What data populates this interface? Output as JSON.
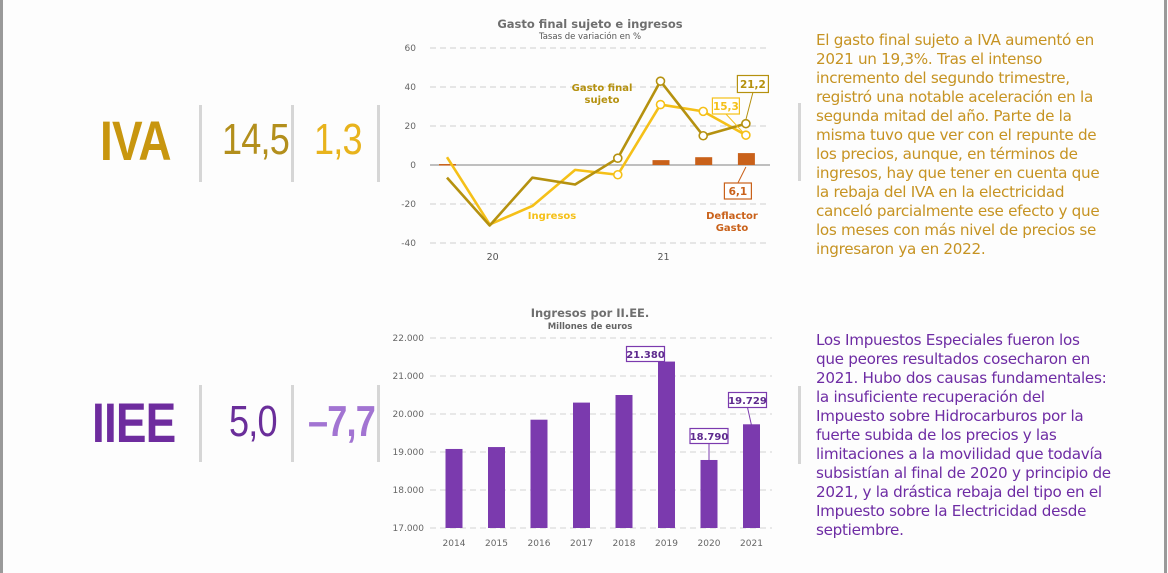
{
  "colors": {
    "iva_title": "#c8960f",
    "iva_val1": "#b38f1c",
    "iva_val2": "#e8b31c",
    "iva_text": "#c69322",
    "iiee_title": "#6e2c9e",
    "iiee_val1": "#6a2e9a",
    "iiee_val2": "#a274d2",
    "iiee_text": "#6e2ca4",
    "gasto_line": "#b5910f",
    "ingresos_line": "#f5c018",
    "deflactor_bar": "#c9611a",
    "iiee_bar": "#7b3aae"
  },
  "iva": {
    "label": "IVA",
    "value_1": "14,5",
    "value_2": "1,3",
    "description_lines": [
      "El gasto final sujeto a IVA aumentó en",
      "2021 un 19,3%. Tras el intenso",
      "incremento del segundo trimestre,",
      "registró una notable aceleración en la",
      "segunda mitad del año. Parte de la",
      "misma tuvo que ver con el repunte de",
      "los precios, aunque, en términos de",
      "ingresos, hay que tener en cuenta que",
      "la rebaja del IVA en la electricidad",
      "canceló parcialmente ese efecto y que",
      "los meses con más nivel de precios se",
      "ingresaron ya en 2022."
    ]
  },
  "iiee": {
    "label": "IIEE",
    "value_1": "5,0",
    "value_2": "–7,7",
    "description_lines": [
      "Los Impuestos Especiales fueron los",
      "que peores resultados cosecharon en",
      "2021. Hubo dos causas fundamentales:",
      "la insuficiente recuperación del",
      "Impuesto sobre Hidrocarburos por la",
      "fuerte subida de los precios y las",
      "limitaciones a la movilidad que todavía",
      "subsistían al final de 2020 y principio de",
      "2021, y la drástica rebaja del tipo en el",
      "Impuesto sobre la Electricidad desde",
      "septiembre."
    ]
  },
  "chart_data": [
    {
      "type": "line",
      "title": "Gasto final sujeto e ingresos",
      "subtitle": "Tasas de variación en %",
      "xlabel": "",
      "ylabel": "",
      "ylim": [
        -40,
        60
      ],
      "yticks": [
        "60",
        "40",
        "20",
        "0",
        "-20",
        "-40"
      ],
      "ytick_values": [
        60,
        40,
        20,
        0,
        -20,
        -40
      ],
      "grid": true,
      "x": [
        "20-Q1",
        "20-Q2",
        "20-Q3",
        "20-Q4",
        "21-Q1",
        "21-Q2",
        "21-Q3",
        "21-Q4"
      ],
      "xtick_labels": [
        {
          "label": "20",
          "index": 1
        },
        {
          "label": "21",
          "index": 5
        }
      ],
      "series": [
        {
          "name": "Gasto final sujeto",
          "kind": "line",
          "values": [
            -6.5,
            -31,
            -6.5,
            -10,
            3.5,
            43,
            15,
            21.2
          ],
          "markers_from": 4
        },
        {
          "name": "Ingresos",
          "kind": "line",
          "values": [
            4,
            -30.5,
            -21,
            -2.5,
            -5,
            31,
            27.5,
            15.3
          ],
          "markers_from": 4
        },
        {
          "name": "Deflactor Gasto",
          "kind": "bar",
          "values": [
            0.5,
            null,
            null,
            null,
            null,
            2.5,
            4.0,
            6.1
          ]
        }
      ],
      "annotations": [
        {
          "text": "Gasto final",
          "text2": "sujeto",
          "series": "Gasto final sujeto"
        },
        {
          "text": "Ingresos",
          "series": "Ingresos"
        },
        {
          "text": "Deflactor",
          "text2": "Gasto",
          "series": "Deflactor Gasto"
        },
        {
          "text": "21,2",
          "series": "Gasto final sujeto",
          "index": 7
        },
        {
          "text": "15,3",
          "series": "Ingresos",
          "index": 7
        },
        {
          "text": "6,1",
          "series": "Deflactor Gasto",
          "index": 7
        }
      ]
    },
    {
      "type": "bar",
      "title": "Ingresos por II.EE.",
      "subtitle": "Millones de euros",
      "xlabel": "",
      "ylabel": "",
      "ylim": [
        17000,
        22000
      ],
      "yticks": [
        "22.000",
        "21.000",
        "20.000",
        "19.000",
        "18.000",
        "17.000"
      ],
      "ytick_values": [
        22000,
        21000,
        20000,
        19000,
        18000,
        17000
      ],
      "grid": true,
      "categories": [
        "2014",
        "2015",
        "2016",
        "2017",
        "2018",
        "2019",
        "2020",
        "2021"
      ],
      "values": [
        19080,
        19130,
        19850,
        20300,
        20500,
        21380,
        18790,
        19729
      ],
      "data_labels": [
        {
          "index": 5,
          "text": "21.380"
        },
        {
          "index": 6,
          "text": "18.790"
        },
        {
          "index": 7,
          "text": "19.729"
        }
      ]
    }
  ]
}
